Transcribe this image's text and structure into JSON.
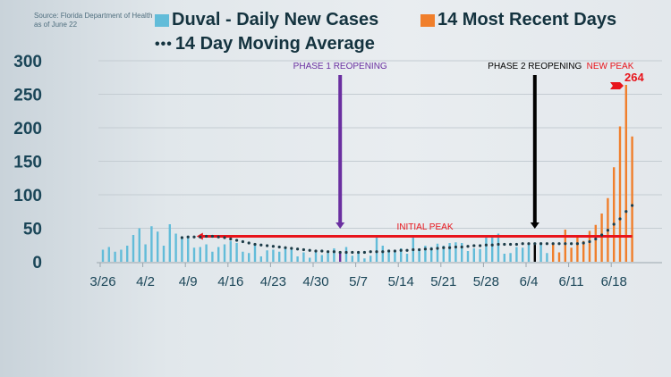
{
  "source": {
    "line1": "Source: Florida Department of Health",
    "line2": "as of June 22"
  },
  "colors": {
    "daily": "#62bcd9",
    "recent": "#f07f2c",
    "average": "#1d3c48",
    "initial_peak": "#e8141b",
    "phase1": "#6a2fa0",
    "phase2": "#000000",
    "new_peak": "#e8141b",
    "axis_text": "#1b4658"
  },
  "legend": {
    "daily": "Duval - Daily New Cases",
    "recent": "14 Most Recent Days",
    "average": "14 Day Moving Average"
  },
  "annotations": {
    "phase1": "PHASE 1 REOPENING",
    "phase2": "PHASE 2 REOPENING",
    "new_peak": "NEW PEAK",
    "new_peak_value": "264",
    "initial_peak": "INITIAL PEAK"
  },
  "chart_data": {
    "type": "bar",
    "title": "",
    "xlabel": "",
    "ylabel": "",
    "ylim": [
      0,
      300
    ],
    "yticks": [
      0,
      50,
      100,
      150,
      200,
      250,
      300
    ],
    "grid": true,
    "legend_position": "top",
    "start_date": "3/26",
    "xtick_labels": [
      "3/26",
      "4/2",
      "4/9",
      "4/16",
      "4/23",
      "4/30",
      "5/7",
      "5/14",
      "5/21",
      "5/28",
      "6/4",
      "6/11",
      "6/18"
    ],
    "series": [
      {
        "name": "Duval - Daily New Cases",
        "type": "bar",
        "values": [
          18,
          22,
          15,
          18,
          24,
          40,
          50,
          26,
          53,
          45,
          24,
          56,
          42,
          36,
          37,
          21,
          22,
          26,
          15,
          22,
          26,
          31,
          28,
          15,
          13,
          26,
          8,
          17,
          18,
          15,
          20,
          18,
          8,
          14,
          6,
          15,
          10,
          13,
          20,
          15,
          22,
          9,
          15,
          5,
          9,
          36,
          24,
          18,
          14,
          20,
          12,
          36,
          18,
          24,
          22,
          27,
          24,
          28,
          29,
          28,
          16,
          20,
          19,
          40,
          36,
          42,
          12,
          13,
          22,
          21,
          27,
          28,
          29,
          13
        ]
      },
      {
        "name": "14 Most Recent Days",
        "type": "bar",
        "start": "6/8",
        "values": [
          27,
          14,
          48,
          21,
          36,
          31,
          46,
          55,
          72,
          95,
          141,
          202,
          264,
          187
        ]
      },
      {
        "name": "14 Day Moving Average",
        "type": "line",
        "start": "4/8",
        "values": [
          36,
          37,
          37,
          37,
          38,
          38,
          37,
          36,
          34,
          32,
          30,
          28,
          26,
          25,
          24,
          23,
          22,
          21,
          20,
          19,
          18,
          17,
          16,
          16,
          15,
          15,
          14,
          14,
          14,
          14,
          14,
          15,
          15,
          15,
          16,
          16,
          17,
          17,
          18,
          18,
          19,
          19,
          20,
          21,
          21,
          22,
          22,
          23,
          24,
          24,
          25,
          25,
          26,
          26,
          26,
          26,
          27,
          27,
          27,
          27,
          27,
          27,
          27,
          27,
          27,
          27,
          28,
          30,
          34,
          40,
          47,
          56,
          64,
          75,
          84
        ]
      }
    ],
    "reference_lines": [
      {
        "label": "INITIAL PEAK",
        "value": 38,
        "from": "4/11",
        "to": "6/21"
      }
    ],
    "events": [
      {
        "label": "PHASE 1 REOPENING",
        "date": "5/4"
      },
      {
        "label": "PHASE 2 REOPENING",
        "date": "6/5"
      }
    ]
  }
}
